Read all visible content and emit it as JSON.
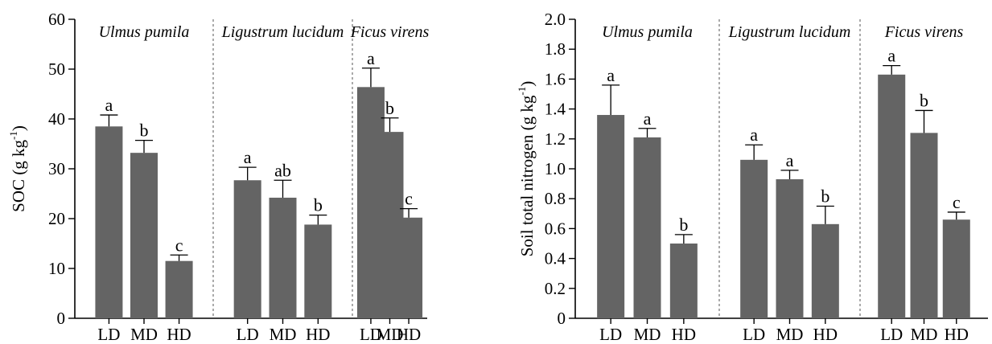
{
  "chart_data": [
    {
      "type": "bar",
      "ylabel": "SOC (g kg",
      "ylabel_sup": "-1",
      "ylabel_tail": ")",
      "ylim": [
        0,
        60
      ],
      "yticks": [
        0,
        10,
        20,
        30,
        40,
        50,
        60
      ],
      "ytick_labels": [
        "0",
        "10",
        "20",
        "30",
        "40",
        "50",
        "60"
      ],
      "groups": [
        {
          "name": "Ulmus pumila",
          "categories": [
            "LD",
            "MD",
            "HD"
          ],
          "values": [
            38.5,
            33.2,
            11.5
          ],
          "errors": [
            2.3,
            2.5,
            1.2
          ],
          "significance": [
            "a",
            "b",
            "c"
          ]
        },
        {
          "name": "Ligustrum lucidum",
          "categories": [
            "LD",
            "MD",
            "HD"
          ],
          "values": [
            27.7,
            24.2,
            18.8
          ],
          "errors": [
            2.6,
            3.5,
            1.9
          ],
          "significance": [
            "a",
            "ab",
            "b"
          ]
        },
        {
          "name": "Ficus virens",
          "categories": [
            "LD",
            "MD",
            "HD"
          ],
          "values": [
            46.4,
            37.4,
            20.2
          ],
          "errors": [
            3.8,
            2.8,
            1.8
          ],
          "significance": [
            "a",
            "b",
            "c"
          ]
        }
      ],
      "bar_color": "#646464",
      "grid": false
    },
    {
      "type": "bar",
      "ylabel": "Soil total nitrogen (g kg",
      "ylabel_sup": "-1",
      "ylabel_tail": ")",
      "ylim": [
        0,
        2.0
      ],
      "yticks": [
        0,
        0.2,
        0.4,
        0.6,
        0.8,
        1.0,
        1.2,
        1.4,
        1.6,
        1.8,
        2.0
      ],
      "ytick_labels": [
        "0",
        "0.2",
        "0.4",
        "0.6",
        "0.8",
        "1.0",
        "1.2",
        "1.4",
        "1.6",
        "1.8",
        "2.0"
      ],
      "groups": [
        {
          "name": "Ulmus pumila",
          "categories": [
            "LD",
            "MD",
            "HD"
          ],
          "values": [
            1.36,
            1.21,
            0.5
          ],
          "errors": [
            0.2,
            0.06,
            0.06
          ],
          "significance": [
            "a",
            "a",
            "b"
          ]
        },
        {
          "name": "Ligustrum lucidum",
          "categories": [
            "LD",
            "MD",
            "HD"
          ],
          "values": [
            1.06,
            0.93,
            0.63
          ],
          "errors": [
            0.1,
            0.06,
            0.12
          ],
          "significance": [
            "a",
            "a",
            "b"
          ]
        },
        {
          "name": "Ficus virens",
          "categories": [
            "LD",
            "MD",
            "HD"
          ],
          "values": [
            1.63,
            1.24,
            0.66
          ],
          "errors": [
            0.06,
            0.15,
            0.05
          ],
          "significance": [
            "a",
            "b",
            "c"
          ]
        }
      ],
      "bar_color": "#646464",
      "grid": false
    }
  ]
}
